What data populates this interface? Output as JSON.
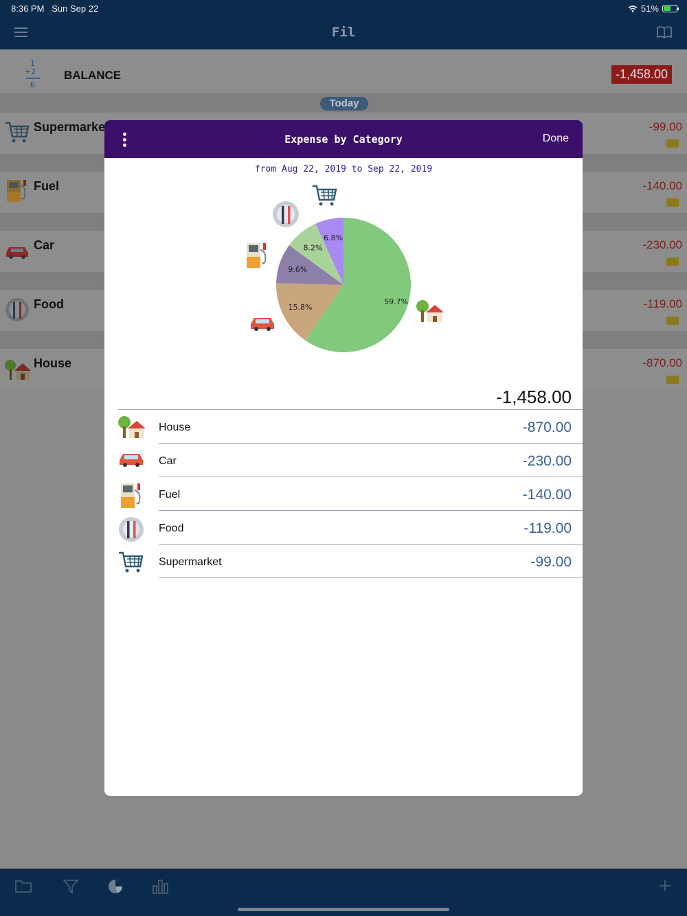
{
  "status": {
    "time": "8:36 PM",
    "date": "Sun Sep 22",
    "battery": "51%"
  },
  "nav": {
    "title": "Fil"
  },
  "balance": {
    "label": "BALANCE",
    "value": "-1,458.00"
  },
  "today_label": "Today",
  "background_rows": [
    {
      "name": "Supermarke",
      "amount": "-99.00",
      "icon": "cart-icon"
    },
    {
      "name": "Fuel",
      "amount": "-140.00",
      "icon": "fuel-pump-icon"
    },
    {
      "name": "Car",
      "amount": "-230.00",
      "icon": "car-icon"
    },
    {
      "name": "Food",
      "amount": "-119.00",
      "icon": "plate-utensils-icon"
    },
    {
      "name": "House",
      "amount": "-870.00",
      "icon": "house-icon"
    }
  ],
  "modal": {
    "title": "Expense by Category",
    "done_label": "Done",
    "date_range": "from Aug 22, 2019 to Sep 22, 2019",
    "total": "-1,458.00",
    "categories": [
      {
        "name": "House",
        "amount": "-870.00",
        "icon": "house-icon"
      },
      {
        "name": "Car",
        "amount": "-230.00",
        "icon": "car-icon"
      },
      {
        "name": "Fuel",
        "amount": "-140.00",
        "icon": "fuel-pump-icon"
      },
      {
        "name": "Food",
        "amount": "-119.00",
        "icon": "plate-utensils-icon"
      },
      {
        "name": "Supermarket",
        "amount": "-99.00",
        "icon": "cart-icon"
      }
    ]
  },
  "chart_data": {
    "type": "pie",
    "categories": [
      "House",
      "Car",
      "Fuel",
      "Food",
      "Supermarket"
    ],
    "values": [
      870,
      230,
      140,
      119,
      99
    ],
    "labels": [
      "59.7%",
      "15.8%",
      "9.6%",
      "8.2%",
      "6.8%"
    ],
    "colors": [
      "#82c97d",
      "#c9a57e",
      "#8c7fa9",
      "#a9d39a",
      "#a98af5"
    ]
  },
  "toolbar": {
    "icons": [
      "folder-icon",
      "filter-icon",
      "pie-chart-icon",
      "bar-chart-icon",
      "plus-icon"
    ]
  }
}
